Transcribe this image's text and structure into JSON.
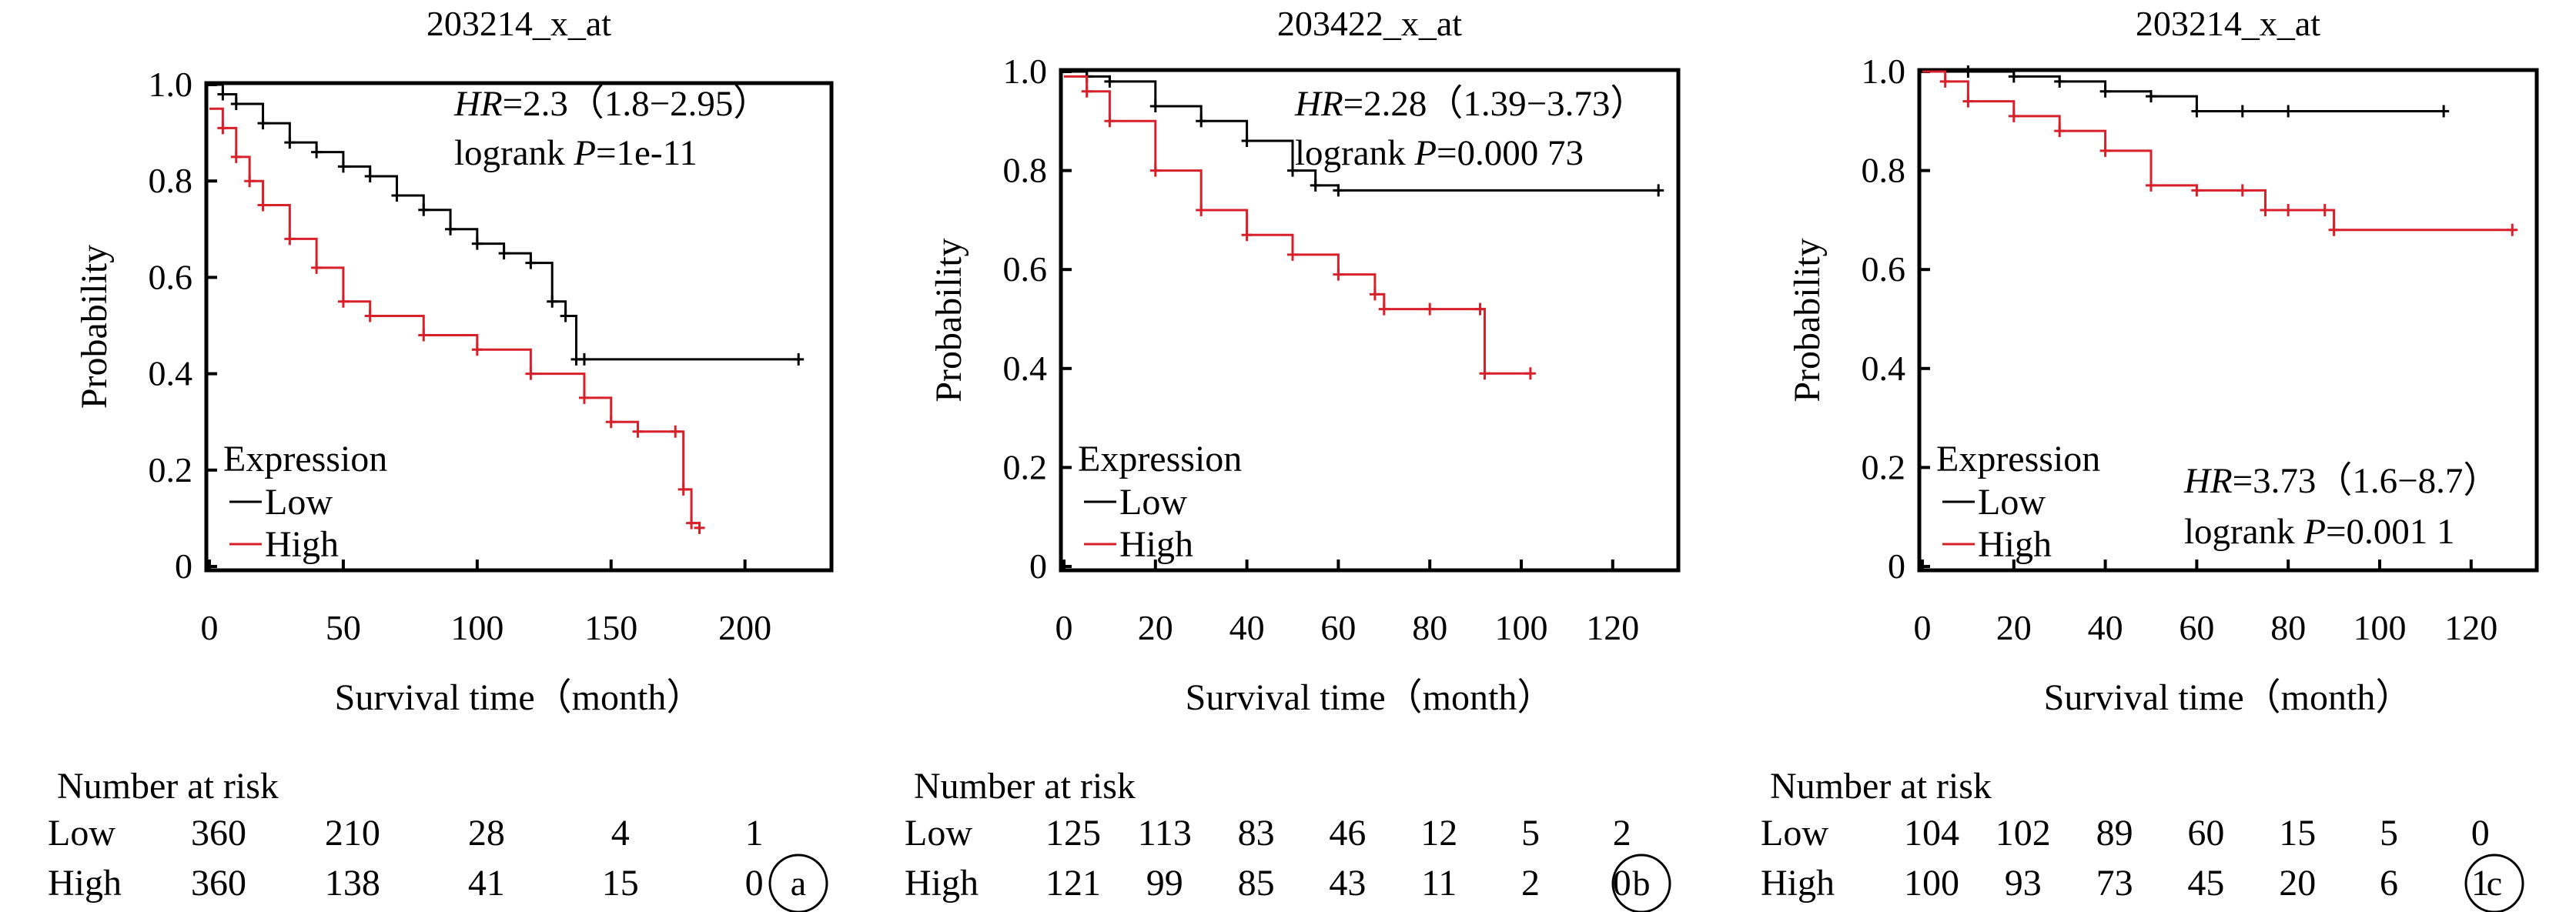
{
  "figure": {
    "panels": [
      {
        "id": "a",
        "title": "203214_x_at",
        "hr_label": "HR",
        "hr_value": "=2.3（1.8−2.95）",
        "logrank_label": "logrank ",
        "p_label": "P",
        "p_value": "=1e-11",
        "stats_position": "top-right",
        "xlabel": "Survival time（month）",
        "ylabel": "Probability",
        "legend_title": "Expression",
        "legend_low": "Low",
        "legend_high": "High",
        "risk_title": "Number at risk",
        "risk_low_label": "Low",
        "risk_high_label": "High",
        "risk_low": [
          "360",
          "210",
          "28",
          "4",
          "1"
        ],
        "risk_high": [
          "360",
          "138",
          "41",
          "15",
          "0"
        ],
        "panel_label": "a"
      },
      {
        "id": "b",
        "title": "203422_x_at",
        "hr_label": "HR",
        "hr_value": "=2.28（1.39−3.73）",
        "logrank_label": "logrank ",
        "p_label": "P",
        "p_value": "=0.000 73",
        "stats_position": "top-right",
        "xlabel": "Survival time（month）",
        "ylabel": "Probability",
        "legend_title": "Expression",
        "legend_low": "Low",
        "legend_high": "High",
        "risk_title": "Number at risk",
        "risk_low_label": "Low",
        "risk_high_label": "High",
        "risk_low": [
          "125",
          "113",
          "83",
          "46",
          "12",
          "5",
          "2"
        ],
        "risk_high": [
          "121",
          "99",
          "85",
          "43",
          "11",
          "2",
          "0"
        ],
        "panel_label": "b"
      },
      {
        "id": "c",
        "title": "203214_x_at",
        "hr_label": "HR",
        "hr_value": "=3.73（1.6−8.7）",
        "logrank_label": "logrank ",
        "p_label": "P",
        "p_value": "=0.001 1",
        "stats_position": "bottom-right",
        "xlabel": "Survival time（month）",
        "ylabel": "Probability",
        "legend_title": "Expression",
        "legend_low": "Low",
        "legend_high": "High",
        "risk_title": "Number at risk",
        "risk_low_label": "Low",
        "risk_high_label": "High",
        "risk_low": [
          "104",
          "102",
          "89",
          "60",
          "15",
          "5",
          "0"
        ],
        "risk_high": [
          "100",
          "93",
          "73",
          "45",
          "20",
          "6",
          "1"
        ],
        "panel_label": "c"
      }
    ]
  },
  "colors": {
    "low": "#000000",
    "high": "#d8202a",
    "axis": "#000000"
  },
  "chart_data": [
    {
      "type": "line",
      "title": "203214_x_at",
      "xlabel": "Survival time（month）",
      "ylabel": "Probability",
      "xlim": [
        0,
        230
      ],
      "ylim": [
        0,
        1.0
      ],
      "xticks": [
        0,
        50,
        100,
        150,
        200
      ],
      "yticks": [
        0,
        0.2,
        0.4,
        0.6,
        0.8,
        1.0
      ],
      "ytick_labels": [
        "0",
        "0.2",
        "0.4",
        "0.6",
        "0.8",
        "1.0"
      ],
      "legend": "bottom-left",
      "series": [
        {
          "name": "Low",
          "color": "#000000",
          "x": [
            0,
            5,
            10,
            20,
            30,
            40,
            50,
            60,
            70,
            80,
            90,
            100,
            110,
            120,
            128,
            133,
            137,
            140,
            220
          ],
          "y": [
            1.0,
            0.98,
            0.96,
            0.92,
            0.88,
            0.86,
            0.83,
            0.81,
            0.77,
            0.74,
            0.7,
            0.67,
            0.65,
            0.63,
            0.55,
            0.52,
            0.43,
            0.43,
            0.43
          ]
        },
        {
          "name": "High",
          "color": "#d8202a",
          "x": [
            0,
            5,
            10,
            15,
            20,
            30,
            40,
            50,
            60,
            80,
            100,
            120,
            140,
            150,
            160,
            174,
            177,
            180,
            183
          ],
          "y": [
            0.95,
            0.91,
            0.85,
            0.8,
            0.75,
            0.68,
            0.62,
            0.55,
            0.52,
            0.48,
            0.45,
            0.4,
            0.35,
            0.3,
            0.28,
            0.28,
            0.16,
            0.09,
            0.08
          ]
        }
      ]
    },
    {
      "type": "line",
      "title": "203422_x_at",
      "xlabel": "Survival time（month）",
      "ylabel": "Probability",
      "xlim": [
        0,
        133
      ],
      "ylim": [
        0,
        1.0
      ],
      "xticks": [
        0,
        20,
        40,
        60,
        80,
        100,
        120
      ],
      "yticks": [
        0,
        0.2,
        0.4,
        0.6,
        0.8,
        1.0
      ],
      "ytick_labels": [
        "0",
        "0.2",
        "0.4",
        "0.6",
        "0.8",
        "1.0"
      ],
      "legend": "bottom-left",
      "series": [
        {
          "name": "Low",
          "color": "#000000",
          "x": [
            0,
            5,
            10,
            20,
            30,
            40,
            50,
            55,
            60,
            130
          ],
          "y": [
            1.0,
            0.99,
            0.98,
            0.93,
            0.9,
            0.86,
            0.8,
            0.77,
            0.76,
            0.76
          ]
        },
        {
          "name": "High",
          "color": "#d8202a",
          "x": [
            0,
            5,
            10,
            20,
            30,
            40,
            50,
            60,
            68,
            70,
            80,
            91,
            92,
            102
          ],
          "y": [
            0.99,
            0.96,
            0.9,
            0.8,
            0.72,
            0.67,
            0.63,
            0.59,
            0.55,
            0.52,
            0.52,
            0.52,
            0.39,
            0.39
          ]
        }
      ]
    },
    {
      "type": "line",
      "title": "203214_x_at",
      "xlabel": "Survival time（month）",
      "ylabel": "Probability",
      "xlim": [
        0,
        133
      ],
      "ylim": [
        0,
        1.0
      ],
      "xticks": [
        0,
        20,
        40,
        60,
        80,
        100,
        120
      ],
      "yticks": [
        0,
        0.2,
        0.4,
        0.6,
        0.8,
        1.0
      ],
      "ytick_labels": [
        "0",
        "0.2",
        "0.4",
        "0.6",
        "0.8",
        "1.0"
      ],
      "legend": "bottom-left",
      "series": [
        {
          "name": "Low",
          "color": "#000000",
          "x": [
            0,
            10,
            20,
            30,
            40,
            50,
            60,
            70,
            80,
            114
          ],
          "y": [
            1.0,
            1.0,
            0.99,
            0.98,
            0.96,
            0.95,
            0.92,
            0.92,
            0.92,
            0.92
          ]
        },
        {
          "name": "High",
          "color": "#d8202a",
          "x": [
            0,
            5,
            10,
            20,
            30,
            40,
            50,
            60,
            70,
            75,
            80,
            88,
            90,
            129
          ],
          "y": [
            1.0,
            0.98,
            0.94,
            0.91,
            0.88,
            0.84,
            0.77,
            0.76,
            0.76,
            0.72,
            0.72,
            0.72,
            0.68,
            0.68
          ]
        }
      ]
    }
  ]
}
